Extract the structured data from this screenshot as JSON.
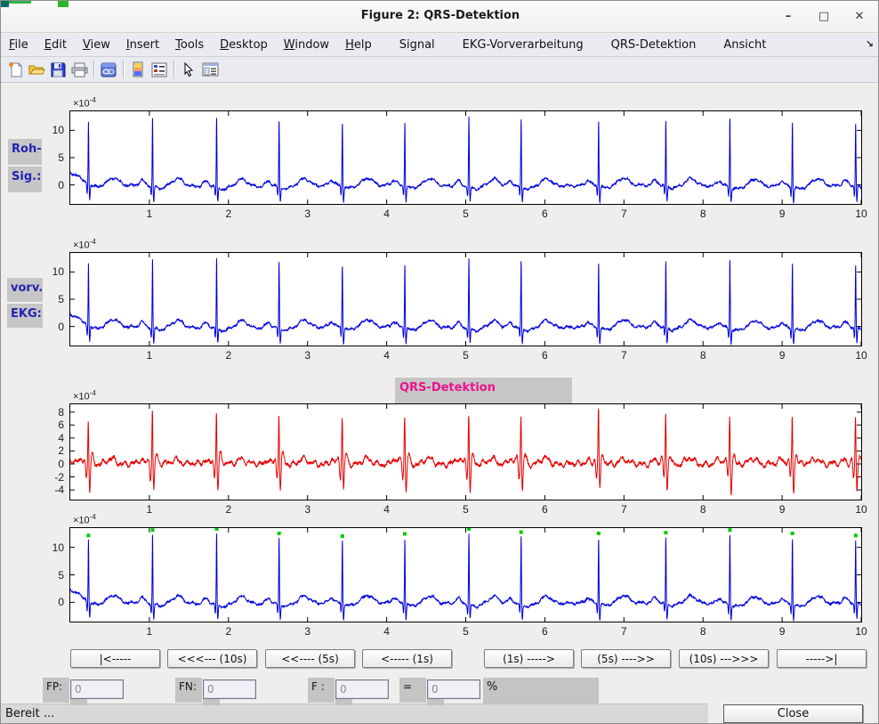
{
  "window": {
    "title": "Figure 2: QRS-Detektion",
    "controls": {
      "minimize": "–",
      "maximize": "□",
      "close": "✕"
    }
  },
  "menu": {
    "items": [
      {
        "label": "File",
        "accel": 0,
        "group": "std"
      },
      {
        "label": "Edit",
        "accel": 0,
        "group": "std"
      },
      {
        "label": "View",
        "accel": 0,
        "group": "std"
      },
      {
        "label": "Insert",
        "accel": 0,
        "group": "std"
      },
      {
        "label": "Tools",
        "accel": 0,
        "group": "std"
      },
      {
        "label": "Desktop",
        "accel": 0,
        "group": "std"
      },
      {
        "label": "Window",
        "accel": 0,
        "group": "std"
      },
      {
        "label": "Help",
        "accel": 0,
        "group": "std"
      },
      {
        "label": "Signal",
        "accel": -1,
        "group": "custom"
      },
      {
        "label": "EKG-Vorverarbeitung",
        "accel": -1,
        "group": "custom"
      },
      {
        "label": "QRS-Detektion",
        "accel": -1,
        "group": "custom"
      },
      {
        "label": "Ansicht",
        "accel": -1,
        "group": "custom"
      }
    ],
    "overflow_arrow": "↘"
  },
  "toolbar": {
    "icons": [
      "new-document",
      "open-folder",
      "save",
      "print",
      "sep",
      "link-figure",
      "sep",
      "insert-colorbar",
      "insert-legend",
      "sep",
      "edit-plot-arrow",
      "property-editor"
    ]
  },
  "chart_data": [
    {
      "id": "roh-signal",
      "type": "line",
      "side_label": [
        "Roh-",
        "Sig.:"
      ],
      "series_color": "#0000dd",
      "x_range": [
        0,
        10
      ],
      "x_ticks": [
        1,
        2,
        3,
        4,
        5,
        6,
        7,
        8,
        9,
        10
      ],
      "y_range": [
        -3.5,
        13.5
      ],
      "y_ticks": [
        0,
        5,
        10
      ],
      "y_scale_mant": "×10",
      "y_scale_exp": "-4",
      "waveform": "ecg",
      "qrs_times_s": [
        0.23,
        1.04,
        1.85,
        2.64,
        3.44,
        4.23,
        5.04,
        5.7,
        6.68,
        7.53,
        8.34,
        9.13,
        9.93
      ],
      "r_peak_amplitudes_e4": [
        11.6,
        12.6,
        12.8,
        12.0,
        11.5,
        11.9,
        12.8,
        12.2,
        12.0,
        12.1,
        12.6,
        12.0,
        11.6
      ]
    },
    {
      "id": "vorverarbeitetes-ekg",
      "type": "line",
      "side_label": [
        "vorv.",
        "EKG:"
      ],
      "series_color": "#0000dd",
      "x_range": [
        0,
        10
      ],
      "x_ticks": [
        1,
        2,
        3,
        4,
        5,
        6,
        7,
        8,
        9,
        10
      ],
      "y_range": [
        -3.5,
        13.5
      ],
      "y_ticks": [
        0,
        5,
        10
      ],
      "y_scale_mant": "×10",
      "y_scale_exp": "-4",
      "waveform": "ecg",
      "qrs_times_s": [
        0.23,
        1.04,
        1.85,
        2.64,
        3.44,
        4.23,
        5.04,
        5.7,
        6.68,
        7.53,
        8.34,
        9.13,
        9.93
      ],
      "r_peak_amplitudes_e4": [
        11.6,
        12.6,
        12.8,
        12.0,
        11.5,
        11.9,
        12.8,
        12.2,
        12.0,
        12.1,
        12.6,
        12.0,
        11.6
      ]
    },
    {
      "id": "qrs-detektion-bandpass",
      "type": "line",
      "title": "QRS-Detektion",
      "title_color": "#ec128e",
      "series_color": "#e60000",
      "x_range": [
        0,
        10
      ],
      "x_ticks": [
        1,
        2,
        3,
        4,
        5,
        6,
        7,
        8,
        9,
        10
      ],
      "y_range": [
        -5.5,
        9.2
      ],
      "y_ticks": [
        -4,
        -2,
        0,
        2,
        4,
        6,
        8
      ],
      "y_scale_mant": "×10",
      "y_scale_exp": "-4",
      "waveform": "filtered",
      "qrs_times_s": [
        0.23,
        1.04,
        1.85,
        2.64,
        3.44,
        4.23,
        5.04,
        5.7,
        6.68,
        7.53,
        8.34,
        9.13,
        9.93
      ],
      "r_peak_amplitudes_e4": [
        7.2,
        8.8,
        8.1,
        7.9,
        7.4,
        7.8,
        8.2,
        7.9,
        8.7,
        8.0,
        7.8,
        7.9,
        7.5
      ]
    },
    {
      "id": "ekg-mit-qrs-markern",
      "type": "line",
      "series_color": "#0000dd",
      "x_range": [
        0,
        10
      ],
      "x_ticks": [
        1,
        2,
        3,
        4,
        5,
        6,
        7,
        8,
        9,
        10
      ],
      "y_range": [
        -3.5,
        13.5
      ],
      "y_ticks": [
        0,
        5,
        10
      ],
      "y_scale_mant": "×10",
      "y_scale_exp": "-4",
      "waveform": "ecg",
      "qrs_times_s": [
        0.23,
        1.04,
        1.85,
        2.64,
        3.44,
        4.23,
        5.04,
        5.7,
        6.68,
        7.53,
        8.34,
        9.13,
        9.93
      ],
      "r_peak_amplitudes_e4": [
        11.6,
        12.6,
        12.8,
        12.0,
        11.5,
        11.9,
        12.8,
        12.2,
        12.0,
        12.1,
        12.6,
        12.0,
        11.6
      ],
      "markers": {
        "shape": "square",
        "color": "#00cc00",
        "offset_above_peak_e4": 0.55
      }
    }
  ],
  "nav_buttons": [
    {
      "label": "|<-----"
    },
    {
      "label": "<<<--- (10s)"
    },
    {
      "label": "<<---- (5s)"
    },
    {
      "label": "<----- (1s)"
    },
    {
      "label": "(1s) ----->"
    },
    {
      "label": "(5s) ---->>"
    },
    {
      "label": "(10s) --->>>"
    },
    {
      "label": "----->|"
    }
  ],
  "stats": {
    "fp_label": "FP:",
    "fp_value": "0",
    "fn_label": "FN:",
    "fn_value": "0",
    "f_label": "F :",
    "f_value": "0",
    "eq_label": "=",
    "eq_value": "0",
    "percent_label": "%"
  },
  "statusbar": {
    "text": "Bereit ...",
    "close_label": "Close"
  }
}
